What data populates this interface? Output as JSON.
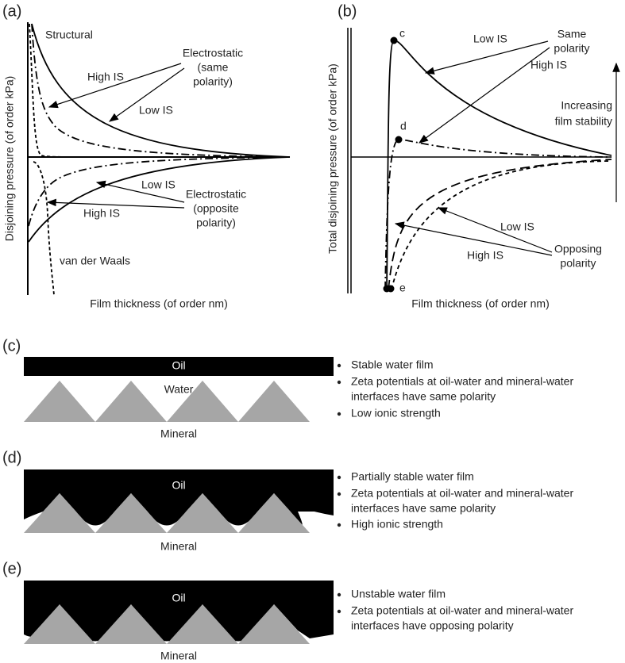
{
  "panel_a": {
    "label": "(a)",
    "y_axis_label": "Disjoining pressure (of order kPa)",
    "x_axis_label": "Film thickness (of order nm)",
    "annotations": {
      "structural": "Structural",
      "electrostatic_same": [
        "Electrostatic",
        "(same",
        "polarity)"
      ],
      "high_is_upper": "High IS",
      "low_is_upper": "Low IS",
      "low_is_lower": "Low IS",
      "electrostatic_opposite": [
        "Electrostatic",
        "(opposite",
        "polarity)"
      ],
      "high_is_lower": "High IS",
      "van_der_waals": "van der Waals"
    }
  },
  "panel_b": {
    "label": "(b)",
    "y_axis_label": "Total disjoining pressure (of order kPa)",
    "x_axis_label": "Film thickness (of order nm)",
    "points": [
      "c",
      "d",
      "e"
    ],
    "annotations": {
      "low_is_upper": "Low IS",
      "same_polarity": [
        "Same",
        "polarity"
      ],
      "high_is_upper": "High IS",
      "stability": [
        "Increasing",
        "film stability"
      ],
      "low_is_lower": "Low IS",
      "opposing_polarity": [
        "Opposing",
        "polarity"
      ],
      "high_is_lower": "High IS"
    }
  },
  "panel_c": {
    "label": "(c)",
    "oil": "Oil",
    "water": "Water",
    "mineral": "Mineral",
    "bullets": [
      [
        "Stable water film"
      ],
      [
        "Zeta potentials at oil-water and mineral-water",
        "interfaces have same polarity"
      ],
      [
        "Low ionic strength"
      ]
    ]
  },
  "panel_d": {
    "label": "(d)",
    "oil": "Oil",
    "mineral": "Mineral",
    "bullets": [
      [
        "Partially stable water film"
      ],
      [
        "Zeta potentials at oil-water and mineral-water",
        "interfaces have same polarity"
      ],
      [
        "High ionic strength"
      ]
    ]
  },
  "panel_e": {
    "label": "(e)",
    "oil": "Oil",
    "mineral": "Mineral",
    "bullets": [
      [
        "Unstable water film"
      ],
      [
        "Zeta potentials at oil-water and mineral-water",
        "interfaces have opposing polarity"
      ]
    ]
  }
}
